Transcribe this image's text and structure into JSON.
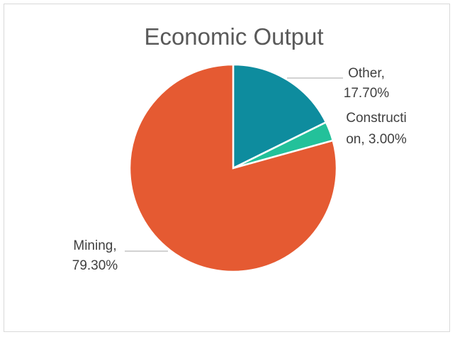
{
  "chart_data": {
    "type": "pie",
    "title": "Economic Output",
    "slices": [
      {
        "name": "Other",
        "value": 17.7,
        "color": "#0e8c9e",
        "label_line1": "Other,",
        "label_line2": "17.70%"
      },
      {
        "name": "Construction",
        "value": 3.0,
        "color": "#23c19a",
        "label_line1": "Constructi",
        "label_line2": "on, 3.00%"
      },
      {
        "name": "Mining",
        "value": 79.3,
        "color": "#e55a32",
        "label_line1": "Mining,",
        "label_line2": "79.30%"
      }
    ],
    "legend": "none",
    "data_labels": "outside with leader lines"
  }
}
